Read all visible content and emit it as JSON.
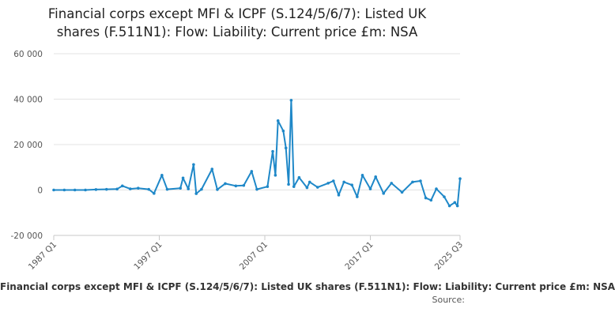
{
  "chart_data": {
    "type": "line",
    "title": {
      "line1": "Financial corps except MFI & ICPF (S.124/5/6/7): Listed UK",
      "line2": "shares (F.511N1): Flow: Liability: Current price £m: NSA"
    },
    "ylim": [
      -20000,
      60000
    ],
    "y_ticks": [
      -20000,
      0,
      20000,
      40000,
      60000
    ],
    "y_tick_labels": [
      "-20 000",
      "0",
      "20 000",
      "40 000",
      "60 000"
    ],
    "x_range": [
      "1987 Q1",
      "2025 Q3"
    ],
    "x_ticks": [
      "1987 Q1",
      "1997 Q1",
      "2007 Q1",
      "2017 Q1",
      "2025 Q3"
    ],
    "grid": "horizontal",
    "line_color": "#1f88c8",
    "series": [
      {
        "name": "Financial corps except MFI & ICPF (S.124/5/6/7): Listed UK shares (F.511N1): Flow: Liability: Current price £m: NSA",
        "points": [
          [
            "1987 Q1",
            0
          ],
          [
            "1988 Q1",
            0
          ],
          [
            "1989 Q1",
            0
          ],
          [
            "1990 Q1",
            0
          ],
          [
            "1991 Q1",
            200
          ],
          [
            "1992 Q1",
            300
          ],
          [
            "1993 Q1",
            400
          ],
          [
            "1993 Q3",
            1800
          ],
          [
            "1994 Q2",
            500
          ],
          [
            "1995 Q1",
            800
          ],
          [
            "1996 Q1",
            300
          ],
          [
            "1996 Q3",
            -1500
          ],
          [
            "1997 Q2",
            6500
          ],
          [
            "1997 Q4",
            300
          ],
          [
            "1999 Q1",
            800
          ],
          [
            "1999 Q2",
            5300
          ],
          [
            "1999 Q4",
            500
          ],
          [
            "2000 Q2",
            11200
          ],
          [
            "2000 Q3",
            -1600
          ],
          [
            "2001 Q1",
            300
          ],
          [
            "2002 Q1",
            9200
          ],
          [
            "2002 Q3",
            200
          ],
          [
            "2003 Q2",
            2800
          ],
          [
            "2004 Q2",
            1800
          ],
          [
            "2005 Q1",
            2000
          ],
          [
            "2005 Q4",
            8200
          ],
          [
            "2006 Q2",
            300
          ],
          [
            "2007 Q2",
            1500
          ],
          [
            "2007 Q4",
            17000
          ],
          [
            "2008 Q1",
            6500
          ],
          [
            "2008 Q2",
            30500
          ],
          [
            "2008 Q4",
            26000
          ],
          [
            "2009 Q1",
            18500
          ],
          [
            "2009 Q2",
            2500
          ],
          [
            "2009 Q3",
            39500
          ],
          [
            "2009 Q4",
            1500
          ],
          [
            "2010 Q2",
            5500
          ],
          [
            "2011 Q1",
            1000
          ],
          [
            "2011 Q2",
            3500
          ],
          [
            "2012 Q1",
            1200
          ],
          [
            "2013 Q1",
            3000
          ],
          [
            "2013 Q3",
            4000
          ],
          [
            "2014 Q1",
            -2200
          ],
          [
            "2014 Q3",
            3500
          ],
          [
            "2015 Q2",
            2200
          ],
          [
            "2015 Q4",
            -3000
          ],
          [
            "2016 Q2",
            6500
          ],
          [
            "2017 Q1",
            500
          ],
          [
            "2017 Q3",
            5800
          ],
          [
            "2018 Q2",
            -1500
          ],
          [
            "2019 Q1",
            3000
          ],
          [
            "2020 Q1",
            -1000
          ],
          [
            "2021 Q1",
            3500
          ],
          [
            "2021 Q4",
            4000
          ],
          [
            "2022 Q2",
            -3500
          ],
          [
            "2022 Q4",
            -4500
          ],
          [
            "2023 Q2",
            500
          ],
          [
            "2024 Q1",
            -3000
          ],
          [
            "2024 Q3",
            -7000
          ],
          [
            "2025 Q1",
            -5500
          ],
          [
            "2025 Q2",
            -7000
          ],
          [
            "2025 Q3",
            5000
          ]
        ]
      }
    ]
  },
  "legend": {
    "text": "Financial corps except MFI & ICPF (S.124/5/6/7): Listed UK shares (F.511N1): Flow: Liability: Current price £m: NSA"
  },
  "source": {
    "label": "Source:"
  }
}
